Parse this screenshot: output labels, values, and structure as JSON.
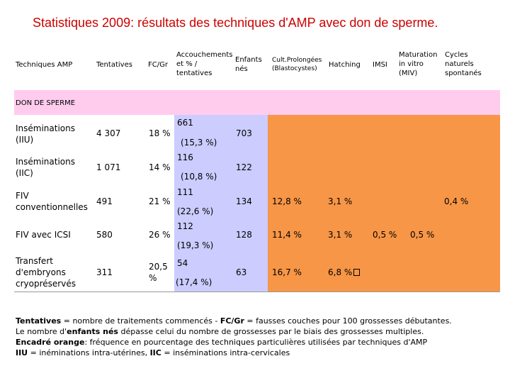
{
  "title": "Statistiques 2009: résultats des techniques d'AMP avec don de sperme.",
  "colors": {
    "title": "#cc0000",
    "lavender": "#ccccff",
    "pink": "#ffccee",
    "orange": "#f79646"
  },
  "headers": {
    "techniques": "Techniques AMP",
    "tentatives": "Tentatives",
    "fcgr": "FC/Gr",
    "accouchements": [
      "Accouchements",
      "et % /",
      "tentatives"
    ],
    "enfants": [
      "Enfants",
      "nés"
    ],
    "cult": [
      "Cult.Prolongées",
      "(Blastocystes)"
    ],
    "hatching": "Hatching",
    "imsi": "IMSI",
    "maturation": [
      "Maturation",
      "in vitro",
      "(MIV)"
    ],
    "cycles": [
      "Cycles",
      "naturels",
      "spontanés"
    ]
  },
  "section": "DON DE SPERME",
  "rows": [
    {
      "label": [
        "Inséminations",
        "(IIU)"
      ],
      "tentatives": "4 307",
      "fcgr": "18 %",
      "acc": "661",
      "acc_pct": "(15,3 %)",
      "enfants": "703",
      "cult": "",
      "hatching": "",
      "imsi": "",
      "miv": "",
      "cycles": ""
    },
    {
      "label": [
        "Inséminations",
        "(IIC)"
      ],
      "tentatives": "1 071",
      "fcgr": "14 %",
      "acc": "116",
      "acc_pct": "(10,8 %)",
      "enfants": "122",
      "cult": "",
      "hatching": "",
      "imsi": "",
      "miv": "",
      "cycles": ""
    },
    {
      "label": [
        "FIV",
        "conventionnelles"
      ],
      "tentatives": "491",
      "fcgr": "21 %",
      "acc": "111",
      "acc_pct": "(22,6 %)",
      "enfants": "134",
      "cult": "12,8 %",
      "hatching": "3,1 %",
      "imsi": "",
      "miv": "",
      "cycles": "0,4 %"
    },
    {
      "label": [
        "FIV avec ICSI"
      ],
      "tentatives": "580",
      "fcgr": "26 %",
      "acc": "112",
      "acc_pct": "(19,3 %)",
      "enfants": "128",
      "cult": "11,4 %",
      "hatching": "3,1 %",
      "imsi": "0,5 %",
      "miv": "0,5 %",
      "cycles": ""
    },
    {
      "label": [
        "Transfert",
        "d'embryons",
        "cryopréservés"
      ],
      "tentatives": "311",
      "fcgr": "20,5 %",
      "acc": "54",
      "acc_pct": "(17,4 %)",
      "enfants": "63",
      "cult": "16,7 %",
      "hatching": "6,8 %",
      "imsi": "",
      "miv": "",
      "cycles": ""
    }
  ],
  "footer": {
    "l1_b1": "Tentatives",
    "l1_t1": " = nombre de traitements commencés - ",
    "l1_b2": "FC/Gr",
    "l1_t2": " = fausses couches pour 100 grossesses débutantes.",
    "l2_t1": "Le nombre d'",
    "l2_b1": "enfants nés",
    "l2_t2": " dépasse celui du nombre de grossesses par le biais des grossesses multiples.",
    "l3_b1": "Encadré orange",
    "l3_t1": ": fréquence en pourcentage des techniques particulières utilisées par techniques d'AMP",
    "l4_b1": "IIU",
    "l4_t1": " = inéminations intra-utérines, ",
    "l4_b2": "IIC",
    "l4_t2": " = inséminations intra-cervicales"
  }
}
